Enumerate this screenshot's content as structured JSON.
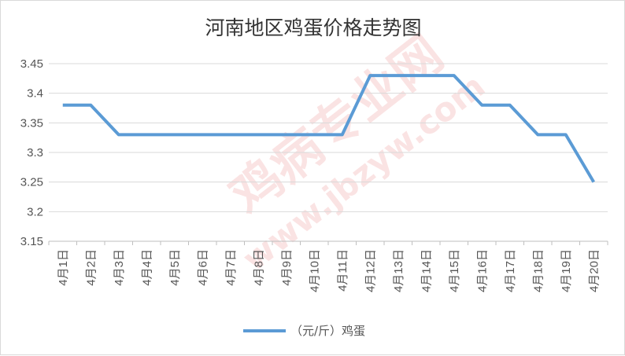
{
  "chart_data": {
    "type": "line",
    "title": "河南地区鸡蛋价格走势图",
    "xlabel": "",
    "ylabel": "",
    "categories": [
      "4月1日",
      "4月2日",
      "4月3日",
      "4月4日",
      "4月5日",
      "4月6日",
      "4月7日",
      "4月8日",
      "4月9日",
      "4月10日",
      "4月11日",
      "4月12日",
      "4月13日",
      "4月14日",
      "4月15日",
      "4月16日",
      "4月17日",
      "4月18日",
      "4月19日",
      "4月20日"
    ],
    "series": [
      {
        "name": "（元/斤）鸡蛋",
        "color": "#5b9bd5",
        "values": [
          3.38,
          3.38,
          3.33,
          3.33,
          3.33,
          3.33,
          3.33,
          3.33,
          3.33,
          3.33,
          3.33,
          3.43,
          3.43,
          3.43,
          3.43,
          3.38,
          3.38,
          3.33,
          3.33,
          3.25
        ]
      }
    ],
    "yticks": [
      "3.15",
      "3.2",
      "3.25",
      "3.3",
      "3.35",
      "3.4",
      "3.45"
    ],
    "ylim": [
      3.15,
      3.45
    ],
    "grid": true,
    "legend_position": "bottom"
  },
  "watermark": {
    "text_cn": "鸡病专业网",
    "text_url": "www.jbzyw.com"
  }
}
